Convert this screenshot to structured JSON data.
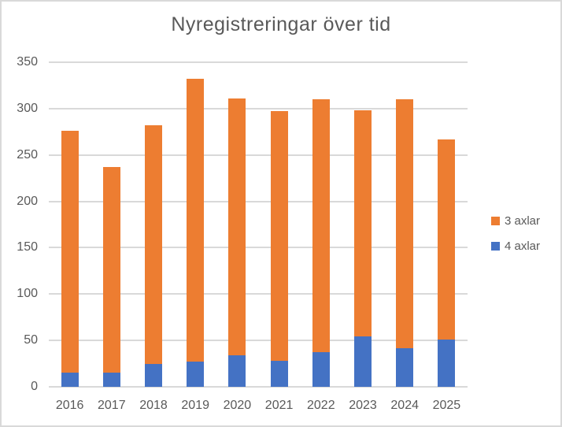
{
  "chart_data": {
    "type": "bar",
    "stacked": true,
    "title": "Nyregistreringar över tid",
    "categories": [
      "2016",
      "2017",
      "2018",
      "2019",
      "2020",
      "2021",
      "2022",
      "2023",
      "2024",
      "2025"
    ],
    "series": [
      {
        "name": "4 axlar",
        "color": "#4472C4",
        "values": [
          15,
          15,
          25,
          27,
          34,
          28,
          37,
          54,
          42,
          51
        ]
      },
      {
        "name": "3 axlar",
        "color": "#ED7D31",
        "values": [
          261,
          222,
          257,
          305,
          277,
          269,
          273,
          244,
          268,
          216
        ]
      }
    ],
    "stacked_totals": [
      276,
      237,
      282,
      332,
      311,
      297,
      310,
      298,
      310,
      267
    ],
    "xlabel": "",
    "ylabel": "",
    "ylim": [
      0,
      350
    ],
    "y_ticks": [
      0,
      50,
      100,
      150,
      200,
      250,
      300,
      350
    ],
    "grid": true,
    "legend": {
      "position": "right",
      "items": [
        {
          "label": "3 axlar",
          "color": "#ED7D31"
        },
        {
          "label": "4 axlar",
          "color": "#4472C4"
        }
      ]
    }
  },
  "ui": {
    "text_color": "#595959",
    "gridline_color": "#D9D9D9",
    "border_color": "#D9D9D9",
    "background_color": "#FFFFFF"
  }
}
